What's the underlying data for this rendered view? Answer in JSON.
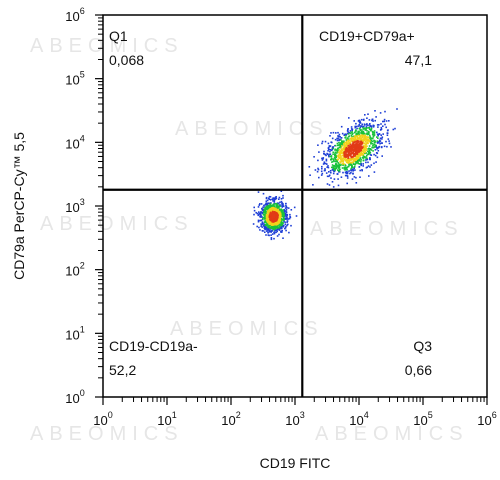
{
  "watermark": "ABEOMICS",
  "chart_data": {
    "type": "scatter",
    "subtype": "flow-cytometry-density-dot-plot",
    "xlabel": "CD19 FITC",
    "ylabel": "CD79a PerCP-Cy™ 5,5",
    "x_scale": "log",
    "y_scale": "log",
    "xlim": [
      1,
      1000000
    ],
    "ylim": [
      1,
      1000000
    ],
    "x_ticks": [
      {
        "base": "10",
        "exp": "0",
        "value": 1
      },
      {
        "base": "10",
        "exp": "1",
        "value": 10
      },
      {
        "base": "10",
        "exp": "2",
        "value": 100
      },
      {
        "base": "10",
        "exp": "3",
        "value": 1000
      },
      {
        "base": "10",
        "exp": "4",
        "value": 10000
      },
      {
        "base": "10",
        "exp": "5",
        "value": 100000
      },
      {
        "base": "10",
        "exp": "6",
        "value": 1000000
      }
    ],
    "y_ticks": [
      {
        "base": "10",
        "exp": "0",
        "value": 1
      },
      {
        "base": "10",
        "exp": "1",
        "value": 10
      },
      {
        "base": "10",
        "exp": "2",
        "value": 100
      },
      {
        "base": "10",
        "exp": "3",
        "value": 1000
      },
      {
        "base": "10",
        "exp": "4",
        "value": 10000
      },
      {
        "base": "10",
        "exp": "5",
        "value": 100000
      },
      {
        "base": "10",
        "exp": "6",
        "value": 1000000
      }
    ],
    "gate": {
      "x": 1300,
      "y": 1800
    },
    "quadrants": [
      {
        "id": "q1",
        "label": "Q1",
        "value": "0,068",
        "position": "top-left"
      },
      {
        "id": "q2",
        "label": "CD19+CD79a+",
        "value": "47,1",
        "position": "top-right"
      },
      {
        "id": "q3",
        "label": "Q3",
        "value": "0,66",
        "position": "bottom-right"
      },
      {
        "id": "q4",
        "label": "CD19-CD19a-",
        "value": "52,2",
        "position": "bottom-left"
      }
    ],
    "populations": [
      {
        "name": "",
        "center_x": 8000,
        "center_y": 8000,
        "spread_log_x": 0.26,
        "spread_log_y": 0.26,
        "rotation_deg": 40,
        "count": 1300
      },
      {
        "name": "",
        "center_x": 450,
        "center_y": 700,
        "spread_log_x": 0.1,
        "spread_log_y": 0.22,
        "rotation_deg": 0,
        "count": 1050
      }
    ],
    "grid": false,
    "legend": "none",
    "colors": {
      "low": "#1f3fd6",
      "mid": "#19c23a",
      "high": "#f2d21b",
      "peak": "#e23b17",
      "gate_line": "#000000"
    }
  }
}
